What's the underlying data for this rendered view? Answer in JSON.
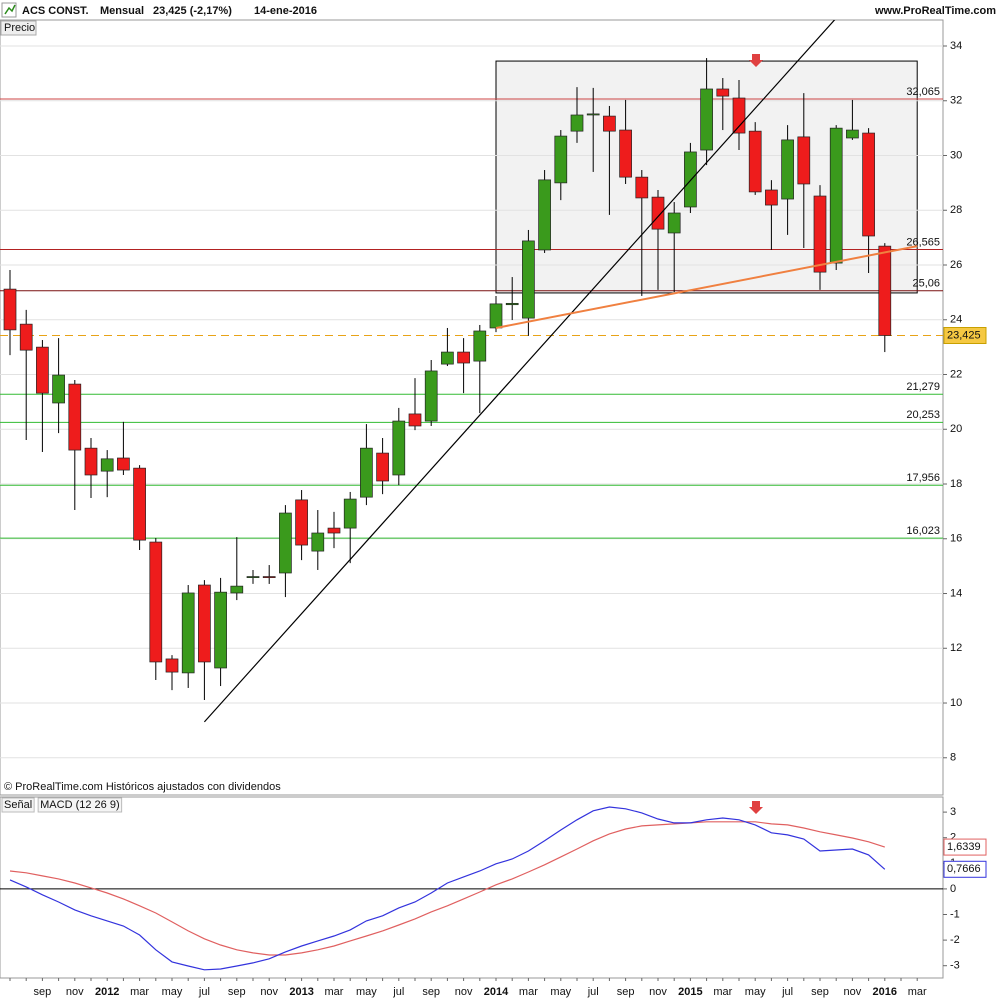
{
  "header": {
    "symbol": "ACS CONST.",
    "period": "Mensual",
    "quote": "23,425 (-2,17%)",
    "date": "14-ene-2016",
    "site": "www.ProRealTime.com"
  },
  "chart_data": [
    {
      "type": "candlestick",
      "panel_label": "Precio",
      "footnote": "© ProRealTime.com  Históricos ajustados con dividendos",
      "categories": [
        null,
        null,
        "sep",
        null,
        "nov",
        null,
        "2012",
        null,
        "mar",
        null,
        "may",
        null,
        "jul",
        null,
        "sep",
        null,
        "nov",
        null,
        "2013",
        null,
        "mar",
        null,
        "may",
        null,
        "jul",
        null,
        "sep",
        null,
        "nov",
        null,
        "2014",
        null,
        "mar",
        null,
        "may",
        null,
        "jul",
        null,
        "sep",
        null,
        "nov",
        null,
        "2015",
        null,
        "mar",
        null,
        "may",
        null,
        "jul",
        null,
        "sep",
        null,
        "nov",
        null,
        "2016",
        null,
        "mar"
      ],
      "open": [
        25.12,
        23.84,
        23.0,
        20.96,
        21.65,
        19.31,
        18.47,
        18.95,
        18.58,
        15.88,
        11.61,
        11.1,
        14.31,
        11.28,
        14.02,
        14.58,
        14.62,
        14.75,
        17.42,
        15.55,
        16.39,
        16.39,
        17.52,
        19.13,
        18.33,
        20.56,
        20.3,
        22.38,
        22.82,
        22.49,
        23.7,
        24.55,
        24.06,
        26.55,
        29.0,
        30.89,
        31.48,
        31.44,
        30.93,
        29.21,
        28.48,
        27.17,
        28.12,
        30.2,
        32.43,
        32.1,
        30.89,
        28.74,
        28.41,
        30.68,
        28.52,
        26.07,
        30.64,
        30.82,
        26.69,
        null,
        null
      ],
      "high": [
        25.82,
        24.36,
        23.26,
        23.33,
        21.8,
        19.68,
        19.24,
        20.27,
        18.69,
        16.03,
        11.75,
        14.31,
        14.49,
        14.57,
        16.06,
        14.86,
        15.04,
        17.23,
        17.78,
        17.05,
        16.98,
        17.71,
        20.19,
        19.68,
        20.78,
        21.87,
        22.53,
        23.7,
        23.33,
        23.81,
        24.87,
        25.56,
        27.28,
        29.47,
        30.93,
        32.5,
        32.47,
        31.81,
        32.03,
        29.47,
        28.74,
        28.3,
        30.46,
        33.56,
        32.83,
        32.76,
        31.22,
        29.1,
        31.11,
        32.28,
        28.92,
        31.11,
        32.03,
        31.0,
        26.8,
        null,
        null
      ],
      "low": [
        22.71,
        19.61,
        19.17,
        19.86,
        17.05,
        17.49,
        17.52,
        18.33,
        15.59,
        10.84,
        10.47,
        10.55,
        10.11,
        10.62,
        13.76,
        14.35,
        14.35,
        13.87,
        15.22,
        14.86,
        15.66,
        15.11,
        17.23,
        17.63,
        17.96,
        19.97,
        20.12,
        22.31,
        21.32,
        20.59,
        23.55,
        23.99,
        23.41,
        26.44,
        28.37,
        30.46,
        29.4,
        27.83,
        28.96,
        24.87,
        25.09,
        25.01,
        27.9,
        29.65,
        30.93,
        30.2,
        28.56,
        26.55,
        27.1,
        26.62,
        25.09,
        25.82,
        30.57,
        25.71,
        22.82,
        null,
        null
      ],
      "close": [
        23.63,
        22.89,
        21.32,
        21.98,
        19.24,
        18.33,
        18.92,
        18.51,
        15.95,
        11.5,
        11.13,
        14.02,
        11.5,
        14.05,
        14.27,
        14.62,
        14.58,
        16.94,
        15.77,
        16.21,
        16.21,
        17.45,
        19.31,
        18.11,
        20.3,
        20.12,
        22.13,
        22.82,
        22.42,
        23.59,
        24.58,
        24.6,
        26.88,
        29.11,
        30.71,
        31.48,
        31.52,
        30.89,
        29.21,
        28.45,
        27.31,
        27.9,
        30.13,
        32.43,
        32.17,
        30.82,
        28.67,
        28.19,
        30.57,
        28.96,
        25.74,
        31.0,
        30.93,
        27.06,
        23.425,
        null,
        null
      ],
      "up_color": "#3a9a1c",
      "down_color": "#ee1c1c",
      "ylim": [
        6.64,
        34.95
      ],
      "yticks": [
        8,
        10,
        12,
        14,
        16,
        18,
        20,
        22,
        24,
        26,
        28,
        30,
        32,
        34
      ],
      "grid": true,
      "levels": [
        {
          "value": 32.065,
          "label": "32,065",
          "color": "#cc4444"
        },
        {
          "value": 26.565,
          "label": "26,565",
          "color": "#b22222"
        },
        {
          "value": 25.06,
          "label": "25,06",
          "color": "#7a1010"
        },
        {
          "value": 23.425,
          "label": "23,425",
          "color": "#e8a317",
          "dashed": true,
          "highlight": true
        },
        {
          "value": 21.279,
          "label": "21,279",
          "color": "#33bb33"
        },
        {
          "value": 20.253,
          "label": "20,253",
          "color": "#33bb33"
        },
        {
          "value": 17.956,
          "label": "17,956",
          "color": "#33bb33"
        },
        {
          "value": 16.023,
          "label": "16,023",
          "color": "#33bb33"
        }
      ],
      "box": {
        "from": 30,
        "to": 56,
        "high": 33.45,
        "low": 24.98,
        "color": "#f2f2f2"
      },
      "trend_lines": [
        {
          "color": "#000000",
          "x": [
            12,
            51
          ],
          "values": [
            9.31,
            35.02
          ]
        },
        {
          "color": "#f08040",
          "x": [
            30,
            56
          ],
          "values": [
            23.7,
            26.69
          ]
        }
      ]
    },
    {
      "type": "line",
      "ylim": [
        -3.48,
        3.59
      ],
      "yticks": [
        3,
        2,
        1,
        0,
        -1,
        -2,
        -3
      ],
      "series": [
        {
          "name": "Señal",
          "color": "#e06060",
          "last_value_label": "1,6339",
          "values": [
            0.7,
            0.63,
            0.51,
            0.39,
            0.23,
            0.04,
            -0.16,
            -0.39,
            -0.66,
            -0.94,
            -1.29,
            -1.64,
            -1.95,
            -2.19,
            -2.38,
            -2.5,
            -2.58,
            -2.58,
            -2.5,
            -2.38,
            -2.23,
            -2.03,
            -1.84,
            -1.64,
            -1.41,
            -1.17,
            -0.9,
            -0.66,
            -0.39,
            -0.12,
            0.16,
            0.39,
            0.66,
            0.94,
            1.25,
            1.56,
            1.88,
            2.15,
            2.34,
            2.46,
            2.5,
            2.54,
            2.58,
            2.62,
            2.62,
            2.62,
            2.62,
            2.54,
            2.5,
            2.38,
            2.23,
            2.11,
            1.99,
            1.84,
            1.6339,
            null,
            null
          ]
        },
        {
          "name": "MACD (12 26 9)",
          "color": "#3333dd",
          "last_value_label": "0,7666",
          "values": [
            0.35,
            0.08,
            -0.23,
            -0.51,
            -0.82,
            -1.05,
            -1.25,
            -1.45,
            -1.8,
            -2.38,
            -2.85,
            -3.01,
            -3.16,
            -3.13,
            -3.01,
            -2.89,
            -2.73,
            -2.46,
            -2.23,
            -2.03,
            -1.84,
            -1.6,
            -1.25,
            -1.05,
            -0.74,
            -0.51,
            -0.16,
            0.23,
            0.47,
            0.7,
            0.98,
            1.17,
            1.48,
            1.88,
            2.3,
            2.7,
            3.05,
            3.2,
            3.13,
            2.97,
            2.73,
            2.58,
            2.58,
            2.7,
            2.77,
            2.7,
            2.5,
            2.19,
            2.11,
            1.95,
            1.48,
            1.52,
            1.56,
            1.33,
            0.7666,
            null,
            null
          ]
        }
      ]
    }
  ]
}
